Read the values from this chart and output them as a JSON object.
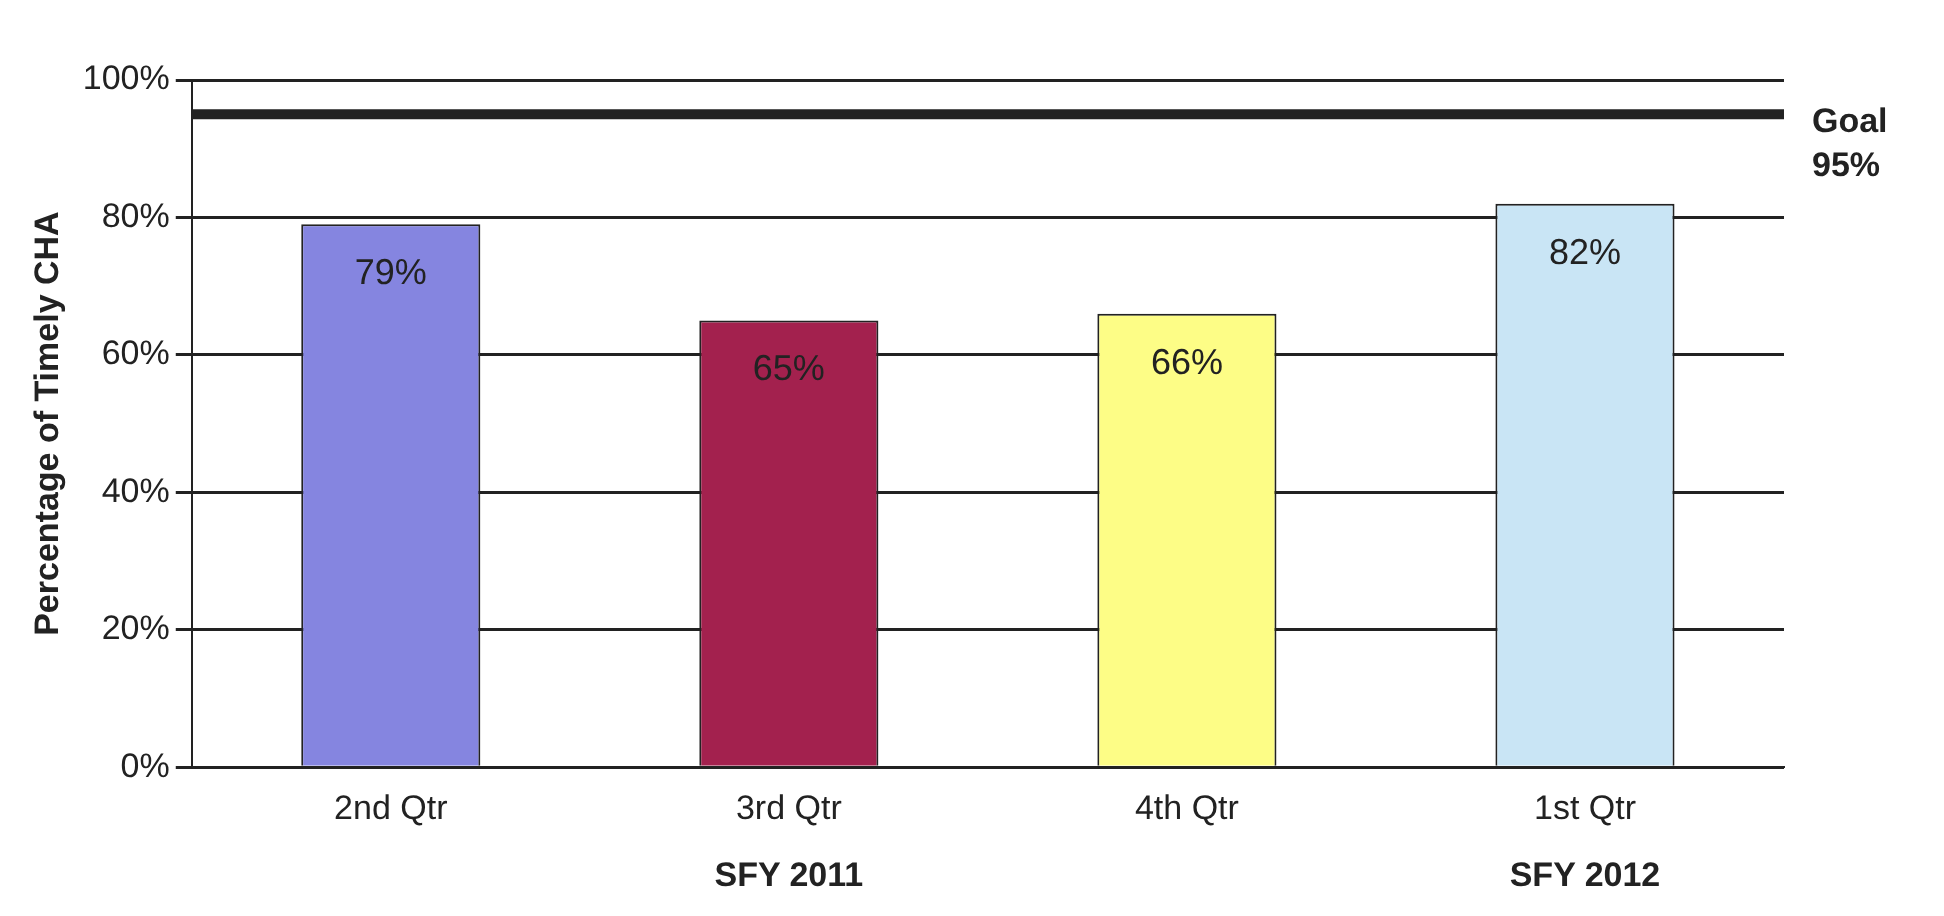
{
  "chart_data": {
    "type": "bar",
    "ylabel": "Percentage of Timely CHA",
    "categories": [
      "2nd Qtr",
      "3rd Qtr",
      "4th Qtr",
      "1st Qtr"
    ],
    "values": [
      79,
      65,
      66,
      82
    ],
    "colors": [
      "#8585e0",
      "#a3214e",
      "#fdfd86",
      "#c9e5f5"
    ],
    "value_labels": [
      "79%",
      "65%",
      "66%",
      "82%"
    ],
    "ylim": [
      0,
      100
    ],
    "yticks": [
      {
        "value": 0,
        "label": "0%"
      },
      {
        "value": 20,
        "label": "20%"
      },
      {
        "value": 40,
        "label": "40%"
      },
      {
        "value": 60,
        "label": "60%"
      },
      {
        "value": 80,
        "label": "80%"
      },
      {
        "value": 100,
        "label": "100%"
      }
    ],
    "grid": "y",
    "ref_lines": [
      {
        "axis": "y",
        "value": 95,
        "label": "Goal 95%",
        "color": "#222222"
      }
    ],
    "annotations": [
      "SFY 2011",
      "SFY 2012"
    ]
  }
}
